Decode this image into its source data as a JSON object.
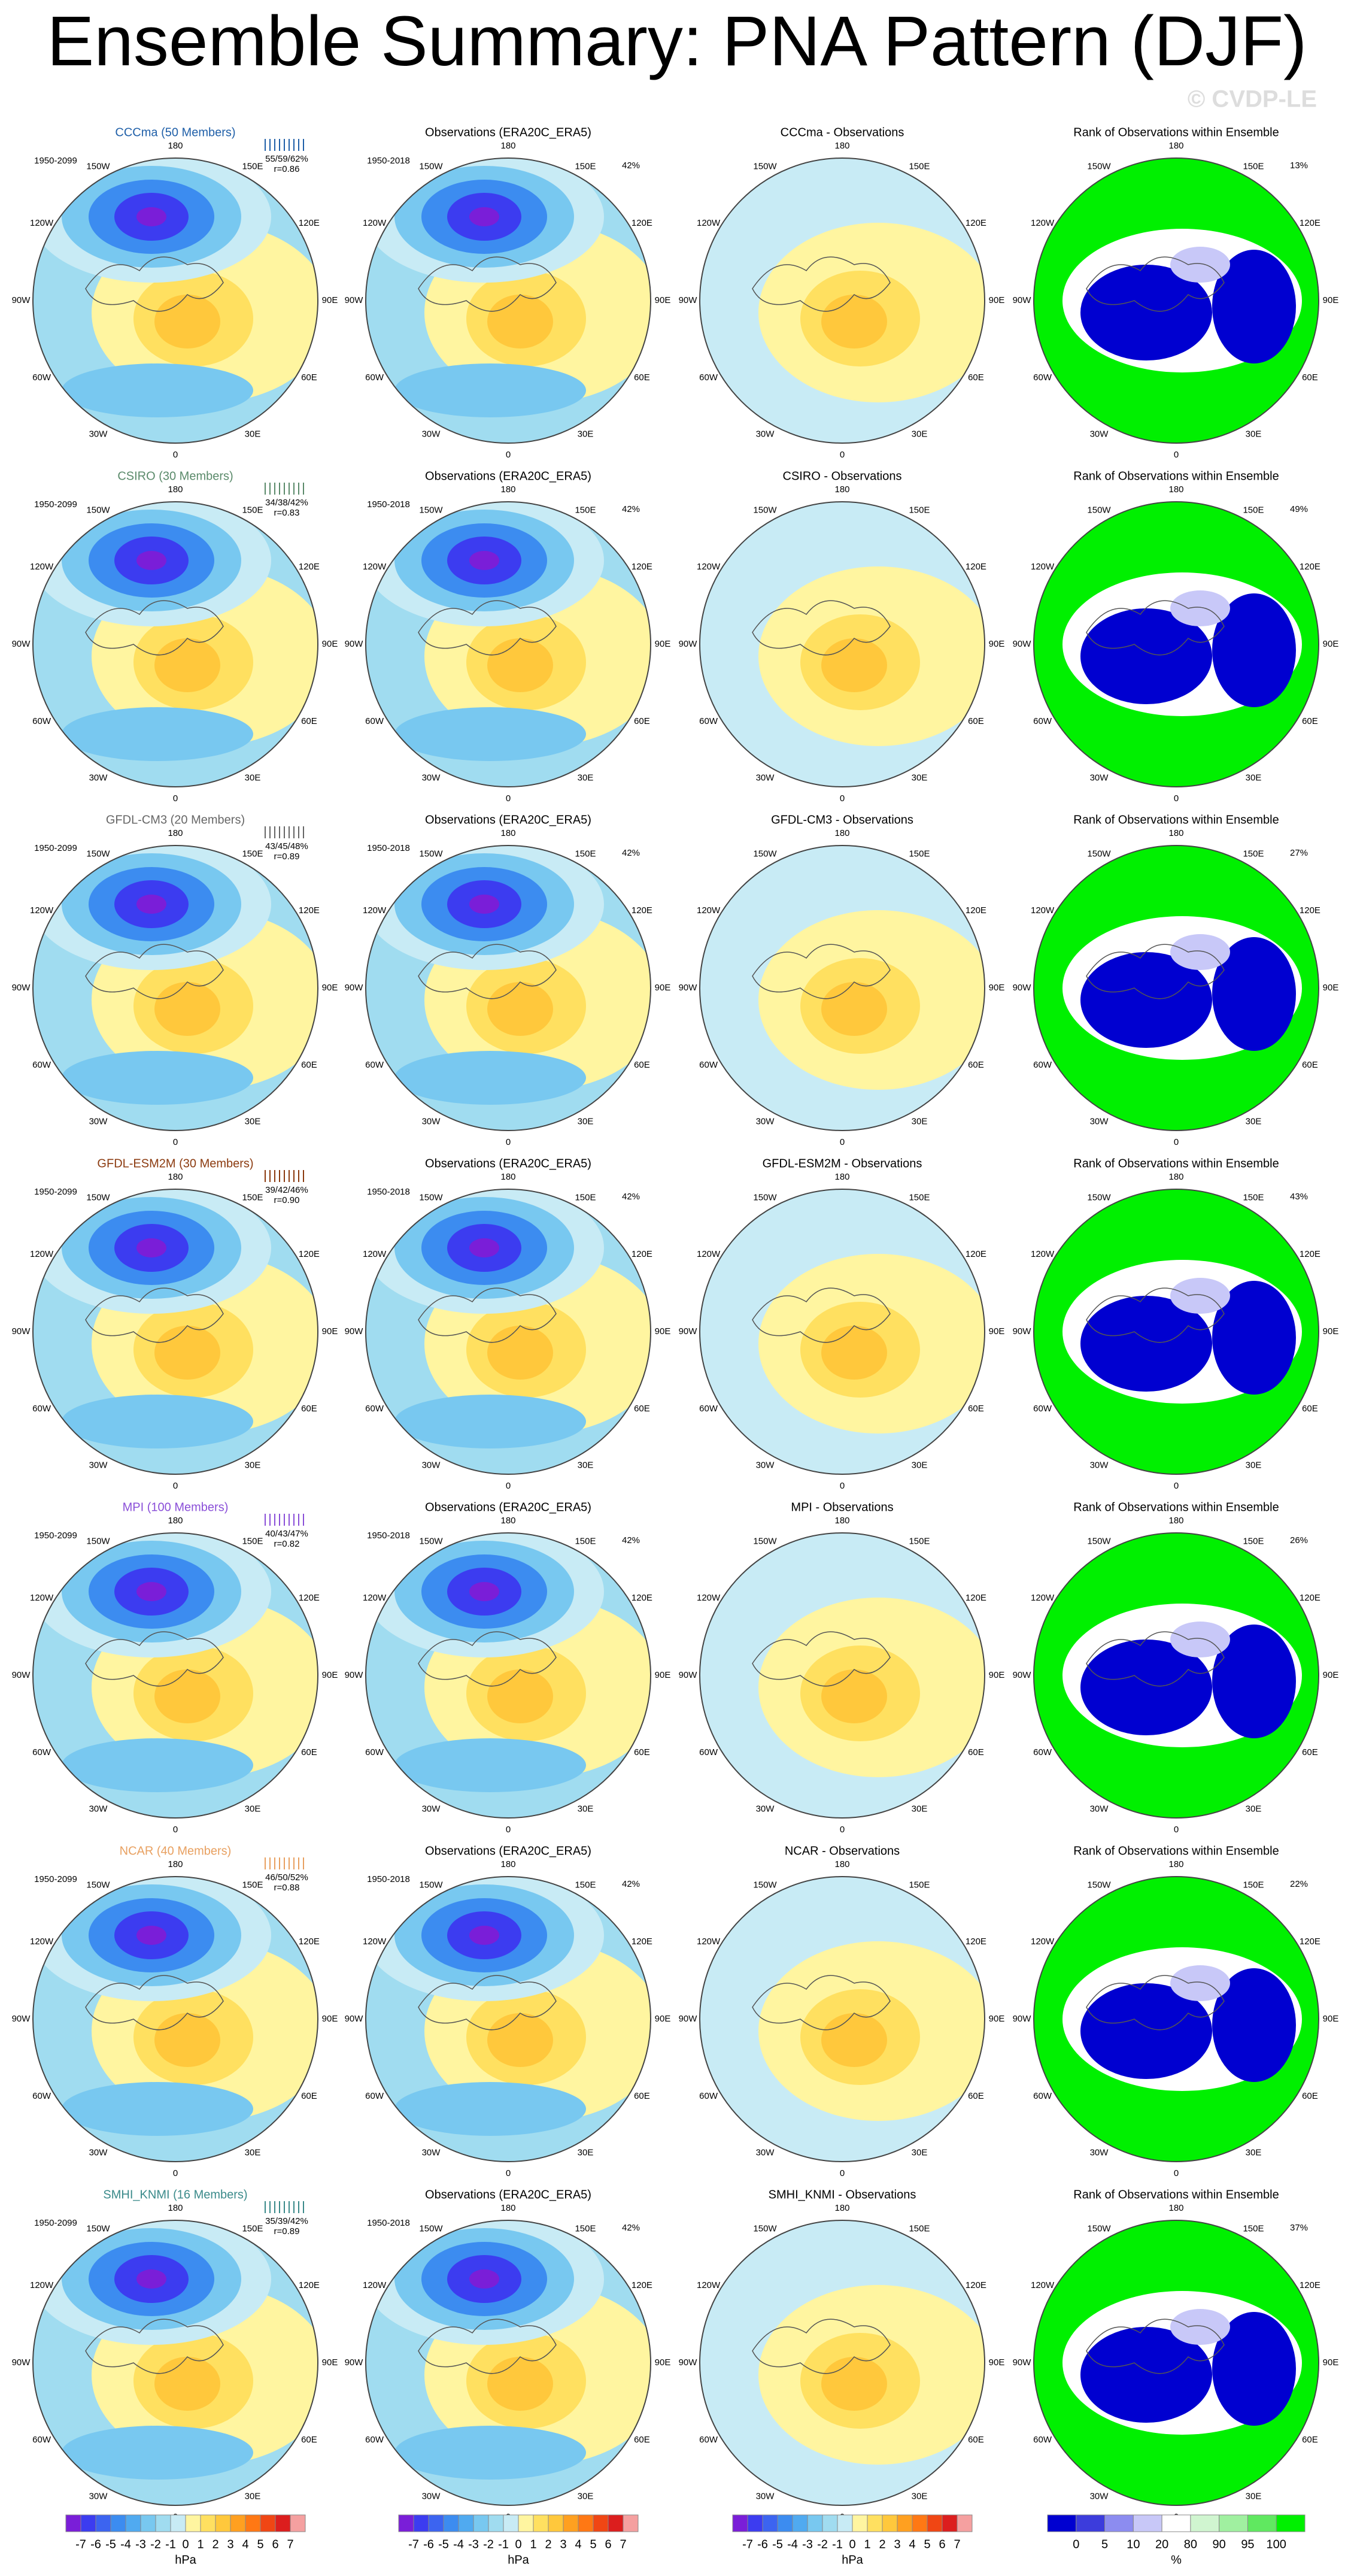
{
  "title": "Ensemble Summary: PNA Pattern (DJF)",
  "watermark": "© CVDP-LE",
  "rows": [
    {
      "model_title": "CCCma (50 Members)",
      "color": "#1f5fa8",
      "model_period": "1950-2099",
      "stats": "55/59/62%",
      "r": "r=0.86",
      "obs_title": "Observations (ERA20C_ERA5)",
      "obs_period": "1950-2018",
      "obs_pct": "42%",
      "diff_title": "CCCma - Observations",
      "rank_title": "Rank of Observations within Ensemble",
      "rank_pct": "13%"
    },
    {
      "model_title": "CSIRO (30 Members)",
      "color": "#5a8a6a",
      "model_period": "1950-2099",
      "stats": "34/38/42%",
      "r": "r=0.83",
      "obs_title": "Observations (ERA20C_ERA5)",
      "obs_period": "1950-2018",
      "obs_pct": "42%",
      "diff_title": "CSIRO - Observations",
      "rank_title": "Rank of Observations within Ensemble",
      "rank_pct": "49%"
    },
    {
      "model_title": "GFDL-CM3 (20 Members)",
      "color": "#666666",
      "model_period": "1950-2099",
      "stats": "43/45/48%",
      "r": "r=0.89",
      "obs_title": "Observations (ERA20C_ERA5)",
      "obs_period": "1950-2018",
      "obs_pct": "42%",
      "diff_title": "GFDL-CM3 - Observations",
      "rank_title": "Rank of Observations within Ensemble",
      "rank_pct": "27%"
    },
    {
      "model_title": "GFDL-ESM2M (30 Members)",
      "color": "#8b3a0f",
      "model_period": "1950-2099",
      "stats": "39/42/46%",
      "r": "r=0.90",
      "obs_title": "Observations (ERA20C_ERA5)",
      "obs_period": "1950-2018",
      "obs_pct": "42%",
      "diff_title": "GFDL-ESM2M - Observations",
      "rank_title": "Rank of Observations within Ensemble",
      "rank_pct": "43%"
    },
    {
      "model_title": "MPI (100 Members)",
      "color": "#8a4fd8",
      "model_period": "1950-2099",
      "stats": "40/43/47%",
      "r": "r=0.82",
      "obs_title": "Observations (ERA20C_ERA5)",
      "obs_period": "1950-2018",
      "obs_pct": "42%",
      "diff_title": "MPI - Observations",
      "rank_title": "Rank of Observations within Ensemble",
      "rank_pct": "26%"
    },
    {
      "model_title": "NCAR (40 Members)",
      "color": "#e8a060",
      "model_period": "1950-2099",
      "stats": "46/50/52%",
      "r": "r=0.88",
      "obs_title": "Observations (ERA20C_ERA5)",
      "obs_period": "1950-2018",
      "obs_pct": "42%",
      "diff_title": "NCAR - Observations",
      "rank_title": "Rank of Observations within Ensemble",
      "rank_pct": "22%"
    },
    {
      "model_title": "SMHI_KNMI (16 Members)",
      "color": "#3a8a8a",
      "model_period": "1950-2099",
      "stats": "35/39/42%",
      "r": "r=0.89",
      "obs_title": "Observations (ERA20C_ERA5)",
      "obs_period": "1950-2018",
      "obs_pct": "42%",
      "diff_title": "SMHI_KNMI - Observations",
      "rank_title": "Rank of Observations within Ensemble",
      "rank_pct": "37%"
    }
  ],
  "axis_labels": [
    "180",
    "150E",
    "120E",
    "90E",
    "60E",
    "30E",
    "0",
    "30W",
    "60W",
    "90W",
    "120W",
    "150W"
  ],
  "colorbar": {
    "labels": [
      "-7",
      "-6",
      "-5",
      "-4",
      "-3",
      "-2",
      "-1",
      "0",
      "1",
      "2",
      "3",
      "4",
      "5",
      "6",
      "7"
    ],
    "unit": "hPa",
    "colors": [
      "#7a1ed8",
      "#3c3cf0",
      "#3c64f0",
      "#3c8cf0",
      "#50aaf0",
      "#78c8f0",
      "#a0dcf0",
      "#c8ebf5",
      "#fff5a0",
      "#ffe060",
      "#ffc83c",
      "#ffa020",
      "#ff7814",
      "#f04614",
      "#dc1e1e",
      "#f5a0a0"
    ]
  },
  "rank_colorbar": {
    "labels": [
      "0",
      "5",
      "10",
      "20",
      "80",
      "90",
      "95",
      "100"
    ],
    "unit": "%",
    "colors": [
      "#0000d0",
      "#3c3cdc",
      "#8c8cf0",
      "#c8c8f8",
      "#ffffff",
      "#d0f5d0",
      "#a0f0a0",
      "#60e860",
      "#00f000"
    ]
  }
}
